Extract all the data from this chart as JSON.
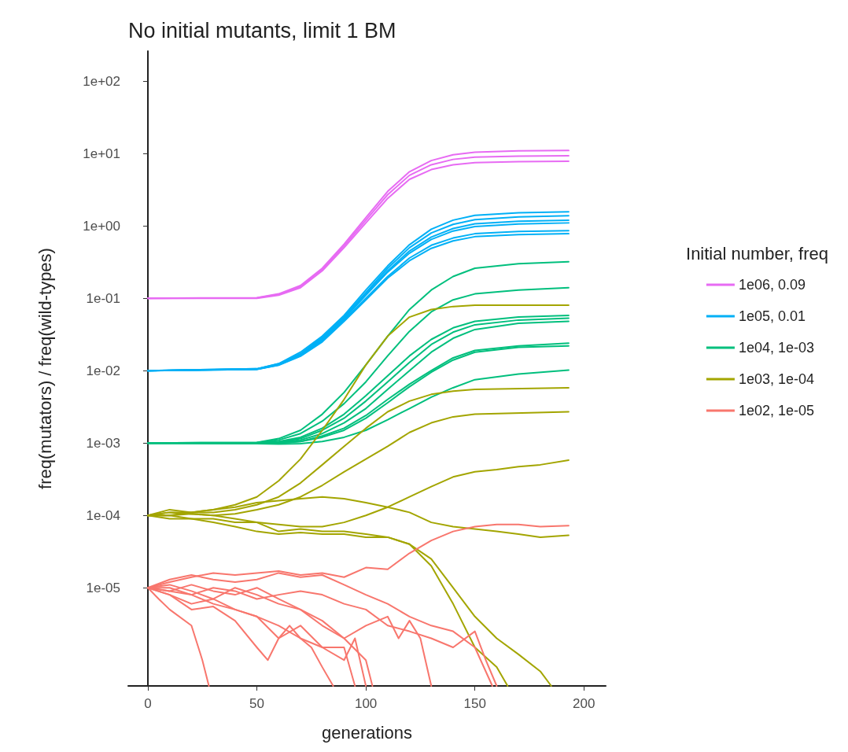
{
  "chart_data": {
    "type": "line",
    "title": "No initial mutants, limit 1 BM",
    "xlabel": "generations",
    "ylabel": "freq(mutators) / freq(wild-types)",
    "legend_title": "Initial number, freq",
    "legend": "right",
    "grid": false,
    "marker": "none",
    "line_style": "solid",
    "log": "y",
    "xlim": [
      -9,
      210
    ],
    "xticks": [
      0,
      50,
      100,
      150,
      200
    ],
    "ylim": [
      4.4e-07,
      260
    ],
    "yticks": [
      {
        "value": 1e-05,
        "label": "1e-05"
      },
      {
        "value": 0.0001,
        "label": "1e-04"
      },
      {
        "value": 0.001,
        "label": "1e-03"
      },
      {
        "value": 0.01,
        "label": "1e-02"
      },
      {
        "value": 0.1,
        "label": "1e-01"
      },
      {
        "value": 1,
        "label": "1e+00"
      },
      {
        "value": 10,
        "label": "1e+01"
      },
      {
        "value": 100,
        "label": "1e+02"
      }
    ],
    "series": [
      {
        "name": "1e06, 0.09",
        "color": "#e76bf3",
        "x": [
          0,
          50,
          60,
          70,
          80,
          90,
          100,
          110,
          120,
          130,
          140,
          150,
          170,
          193
        ],
        "values": [
          0.1,
          0.102,
          0.115,
          0.15,
          0.26,
          0.56,
          1.3,
          3,
          5.6,
          8,
          9.6,
          10.4,
          10.9,
          11
        ]
      },
      {
        "color": "#e76bf3",
        "x": [
          0,
          50,
          60,
          70,
          80,
          90,
          100,
          110,
          120,
          130,
          140,
          150,
          170,
          193
        ],
        "values": [
          0.1,
          0.101,
          0.113,
          0.145,
          0.25,
          0.53,
          1.2,
          2.7,
          5,
          7,
          8.3,
          8.9,
          9.2,
          9.3
        ]
      },
      {
        "color": "#e76bf3",
        "x": [
          0,
          50,
          60,
          70,
          80,
          90,
          100,
          110,
          120,
          130,
          140,
          150,
          170,
          193
        ],
        "values": [
          0.1,
          0.1,
          0.11,
          0.14,
          0.24,
          0.5,
          1.1,
          2.4,
          4.4,
          6,
          7,
          7.5,
          7.7,
          7.8
        ]
      },
      {
        "name": "1e05, 0.01",
        "color": "#00b0f6",
        "x": [
          0,
          50,
          60,
          70,
          80,
          90,
          100,
          110,
          120,
          130,
          140,
          150,
          170,
          193
        ],
        "values": [
          0.01,
          0.0106,
          0.0125,
          0.018,
          0.03,
          0.058,
          0.13,
          0.28,
          0.55,
          0.9,
          1.2,
          1.4,
          1.52,
          1.57
        ]
      },
      {
        "color": "#00b0f6",
        "x": [
          0,
          50,
          60,
          70,
          80,
          90,
          100,
          110,
          120,
          130,
          140,
          150,
          170,
          193
        ],
        "values": [
          0.01,
          0.0106,
          0.0124,
          0.017,
          0.029,
          0.056,
          0.12,
          0.26,
          0.5,
          0.8,
          1.05,
          1.22,
          1.33,
          1.38
        ]
      },
      {
        "color": "#00b0f6",
        "x": [
          0,
          50,
          60,
          70,
          80,
          90,
          100,
          110,
          120,
          130,
          140,
          150,
          170,
          193
        ],
        "values": [
          0.01,
          0.0105,
          0.0122,
          0.017,
          0.028,
          0.054,
          0.115,
          0.24,
          0.45,
          0.7,
          0.92,
          1.07,
          1.16,
          1.2
        ]
      },
      {
        "color": "#00b0f6",
        "x": [
          0,
          50,
          60,
          70,
          80,
          90,
          100,
          110,
          120,
          130,
          140,
          150,
          170,
          193
        ],
        "values": [
          0.01,
          0.0105,
          0.0121,
          0.0165,
          0.027,
          0.052,
          0.11,
          0.23,
          0.42,
          0.65,
          0.85,
          0.98,
          1.06,
          1.1
        ]
      },
      {
        "color": "#00b0f6",
        "x": [
          0,
          50,
          60,
          70,
          80,
          90,
          100,
          110,
          120,
          130,
          140,
          150,
          170,
          193
        ],
        "values": [
          0.01,
          0.0104,
          0.012,
          0.016,
          0.026,
          0.05,
          0.1,
          0.2,
          0.36,
          0.54,
          0.68,
          0.78,
          0.84,
          0.86
        ]
      },
      {
        "color": "#00b0f6",
        "x": [
          0,
          50,
          60,
          70,
          80,
          90,
          100,
          110,
          120,
          130,
          140,
          150,
          170,
          193
        ],
        "values": [
          0.01,
          0.0104,
          0.0119,
          0.0158,
          0.025,
          0.048,
          0.095,
          0.19,
          0.33,
          0.49,
          0.62,
          0.71,
          0.76,
          0.78
        ]
      },
      {
        "name": "1e04, 1e-03",
        "color": "#00bf7d",
        "x": [
          0,
          50,
          60,
          70,
          80,
          90,
          100,
          110,
          120,
          130,
          140,
          150,
          170,
          193
        ],
        "values": [
          0.001,
          0.00102,
          0.00115,
          0.0015,
          0.0025,
          0.005,
          0.012,
          0.03,
          0.07,
          0.13,
          0.2,
          0.26,
          0.3,
          0.32
        ]
      },
      {
        "color": "#00bf7d",
        "x": [
          0,
          50,
          60,
          70,
          80,
          90,
          100,
          110,
          120,
          130,
          140,
          150,
          170,
          193
        ],
        "values": [
          0.001,
          0.00102,
          0.0011,
          0.00135,
          0.002,
          0.0035,
          0.007,
          0.016,
          0.035,
          0.065,
          0.095,
          0.115,
          0.13,
          0.14
        ]
      },
      {
        "color": "#00bf7d",
        "x": [
          0,
          50,
          60,
          70,
          80,
          90,
          100,
          110,
          120,
          130,
          140,
          150,
          170,
          193
        ],
        "values": [
          0.001,
          0.001,
          0.00105,
          0.0012,
          0.0016,
          0.0025,
          0.0045,
          0.0085,
          0.016,
          0.027,
          0.039,
          0.048,
          0.055,
          0.058
        ]
      },
      {
        "color": "#00bf7d",
        "x": [
          0,
          50,
          60,
          70,
          80,
          90,
          100,
          110,
          120,
          130,
          140,
          150,
          170,
          193
        ],
        "values": [
          0.001,
          0.001,
          0.00103,
          0.00115,
          0.0015,
          0.0022,
          0.0038,
          0.007,
          0.013,
          0.023,
          0.034,
          0.043,
          0.05,
          0.053
        ]
      },
      {
        "color": "#00bf7d",
        "x": [
          0,
          50,
          60,
          70,
          80,
          90,
          100,
          110,
          120,
          130,
          140,
          150,
          170,
          193
        ],
        "values": [
          0.001,
          0.001,
          0.00102,
          0.0011,
          0.00135,
          0.0019,
          0.003,
          0.0055,
          0.01,
          0.018,
          0.028,
          0.037,
          0.045,
          0.048
        ]
      },
      {
        "color": "#00bf7d",
        "x": [
          0,
          50,
          60,
          70,
          80,
          90,
          100,
          110,
          120,
          130,
          140,
          150,
          170,
          193
        ],
        "values": [
          0.001,
          0.001,
          0.001,
          0.00105,
          0.00125,
          0.0016,
          0.0024,
          0.004,
          0.0065,
          0.01,
          0.015,
          0.019,
          0.022,
          0.024
        ]
      },
      {
        "color": "#00bf7d",
        "x": [
          0,
          50,
          60,
          70,
          80,
          90,
          100,
          110,
          120,
          130,
          140,
          150,
          170,
          193
        ],
        "values": [
          0.001,
          0.00098,
          0.001,
          0.00105,
          0.0012,
          0.0015,
          0.0022,
          0.0036,
          0.006,
          0.0095,
          0.014,
          0.018,
          0.021,
          0.022
        ]
      },
      {
        "color": "#00bf7d",
        "x": [
          0,
          50,
          60,
          70,
          80,
          90,
          100,
          110,
          120,
          130,
          140,
          150,
          170,
          193
        ],
        "values": [
          0.001,
          0.00098,
          0.00097,
          0.00098,
          0.00105,
          0.0012,
          0.0015,
          0.0021,
          0.003,
          0.0043,
          0.0058,
          0.0075,
          0.009,
          0.0102
        ]
      },
      {
        "name": "1e03, 1e-04",
        "color": "#a3a500",
        "x": [
          0,
          10,
          20,
          30,
          40,
          50,
          60,
          70,
          80,
          90,
          100,
          110,
          120,
          130,
          140,
          150,
          193
        ],
        "values": [
          0.0001,
          0.00011,
          0.00011,
          0.00012,
          0.00014,
          0.00018,
          0.0003,
          0.0006,
          0.0015,
          0.004,
          0.012,
          0.03,
          0.055,
          0.07,
          0.077,
          0.08,
          0.08
        ]
      },
      {
        "color": "#a3a500",
        "x": [
          0,
          10,
          20,
          30,
          40,
          50,
          60,
          70,
          80,
          90,
          100,
          110,
          120,
          130,
          140,
          150,
          193
        ],
        "values": [
          0.0001,
          0.0001,
          0.00011,
          0.00011,
          0.00012,
          0.00014,
          0.00018,
          0.00028,
          0.0005,
          0.0009,
          0.0016,
          0.0027,
          0.0038,
          0.0047,
          0.0052,
          0.0055,
          0.0058
        ]
      },
      {
        "color": "#a3a500",
        "x": [
          0,
          10,
          20,
          30,
          40,
          50,
          60,
          70,
          80,
          90,
          100,
          110,
          120,
          130,
          140,
          150,
          193
        ],
        "values": [
          0.0001,
          0.0001,
          0.000105,
          0.0001,
          0.000105,
          0.00012,
          0.00014,
          0.00018,
          0.00026,
          0.0004,
          0.0006,
          0.0009,
          0.0014,
          0.0019,
          0.0023,
          0.0025,
          0.0027
        ]
      },
      {
        "color": "#a3a500",
        "x": [
          0,
          10,
          20,
          30,
          40,
          50,
          60,
          70,
          80,
          90,
          100,
          110,
          120,
          130,
          140,
          150,
          160,
          170,
          180,
          193
        ],
        "values": [
          0.0001,
          0.0001,
          9e-05,
          9e-05,
          8e-05,
          8e-05,
          7.5e-05,
          7e-05,
          7e-05,
          8e-05,
          0.0001,
          0.00013,
          0.00018,
          0.00025,
          0.00034,
          0.0004,
          0.00043,
          0.00047,
          0.0005,
          0.00058
        ]
      },
      {
        "color": "#a3a500",
        "x": [
          0,
          10,
          20,
          30,
          40,
          50,
          60,
          70,
          80,
          90,
          100,
          110,
          120,
          130,
          140,
          150,
          160,
          170,
          180,
          193
        ],
        "values": [
          0.0001,
          0.00012,
          0.00011,
          0.00012,
          0.00013,
          0.00015,
          0.00016,
          0.00017,
          0.00018,
          0.00017,
          0.00015,
          0.00013,
          0.00011,
          8e-05,
          7e-05,
          6.5e-05,
          6e-05,
          5.5e-05,
          5e-05,
          5.3e-05
        ]
      },
      {
        "color": "#a3a500",
        "x": [
          0,
          10,
          20,
          30,
          40,
          50,
          60,
          70,
          80,
          90,
          100,
          110,
          120,
          130,
          140,
          150,
          160,
          165
        ],
        "values": [
          0.0001,
          9e-05,
          9e-05,
          8e-05,
          7e-05,
          6e-05,
          5.5e-05,
          5.8e-05,
          5.5e-05,
          5.5e-05,
          5e-05,
          5e-05,
          4e-05,
          2e-05,
          6e-06,
          1.5e-06,
          8e-07,
          4.4e-07
        ]
      },
      {
        "color": "#a3a500",
        "x": [
          0,
          10,
          20,
          30,
          40,
          50,
          60,
          70,
          80,
          90,
          100,
          110,
          120,
          130,
          140,
          150,
          160,
          170,
          180,
          185
        ],
        "values": [
          0.0001,
          0.00011,
          0.000105,
          0.0001,
          9e-05,
          8e-05,
          6e-05,
          6.5e-05,
          6e-05,
          6e-05,
          5.5e-05,
          5e-05,
          4e-05,
          2.5e-05,
          1e-05,
          4e-06,
          2e-06,
          1.2e-06,
          7e-07,
          4.4e-07
        ]
      },
      {
        "name": "1e02, 1e-05",
        "color": "#f8766d",
        "x": [
          0,
          10,
          20,
          30,
          40,
          50,
          60,
          70,
          80,
          90,
          100,
          110,
          120,
          130,
          140,
          150,
          160,
          170,
          180,
          193
        ],
        "values": [
          1e-05,
          1.2e-05,
          1.4e-05,
          1.6e-05,
          1.5e-05,
          1.6e-05,
          1.7e-05,
          1.5e-05,
          1.6e-05,
          1.4e-05,
          1.9e-05,
          1.8e-05,
          3e-05,
          4.5e-05,
          6e-05,
          7e-05,
          7.5e-05,
          7.5e-05,
          7e-05,
          7.2e-05
        ]
      },
      {
        "color": "#f8766d",
        "x": [
          0,
          10,
          20,
          30,
          40,
          50,
          60,
          70,
          80,
          90,
          100,
          110,
          120,
          130,
          140,
          150,
          158
        ],
        "values": [
          1e-05,
          1.3e-05,
          1.5e-05,
          1.3e-05,
          1.2e-05,
          1.3e-05,
          1.6e-05,
          1.4e-05,
          1.5e-05,
          1.1e-05,
          8e-06,
          6e-06,
          4e-06,
          3e-06,
          2.5e-06,
          1.5e-06,
          4.4e-07
        ]
      },
      {
        "color": "#f8766d",
        "x": [
          0,
          5,
          10,
          20,
          25,
          28
        ],
        "values": [
          1e-05,
          7e-06,
          5e-06,
          3e-06,
          1e-06,
          4.4e-07
        ]
      },
      {
        "color": "#f8766d",
        "x": [
          0,
          10,
          20,
          30,
          40,
          50,
          55,
          60,
          70,
          80,
          90,
          95
        ],
        "values": [
          1e-05,
          8e-06,
          5e-06,
          5.5e-06,
          3.5e-06,
          1.5e-06,
          1e-06,
          2e-06,
          3e-06,
          1.5e-06,
          1.5e-06,
          4.4e-07
        ]
      },
      {
        "color": "#f8766d",
        "x": [
          0,
          10,
          20,
          30,
          40,
          50,
          60,
          70,
          80,
          90,
          100,
          103
        ],
        "values": [
          1e-05,
          9e-06,
          1.1e-05,
          9e-06,
          8e-06,
          1e-05,
          7e-06,
          5e-06,
          3e-06,
          2e-06,
          1e-06,
          4.4e-07
        ]
      },
      {
        "color": "#f8766d",
        "x": [
          0,
          10,
          20,
          30,
          40,
          50,
          60,
          70,
          80,
          90,
          100,
          110,
          115,
          120,
          125,
          130
        ],
        "values": [
          1e-05,
          1.1e-05,
          9e-06,
          7e-06,
          1e-05,
          8e-06,
          6e-06,
          5e-06,
          3.5e-06,
          2e-06,
          3e-06,
          4e-06,
          2e-06,
          3.5e-06,
          2e-06,
          4.4e-07
        ]
      },
      {
        "color": "#f8766d",
        "x": [
          0,
          10,
          20,
          30,
          40,
          50,
          60,
          70,
          80,
          90,
          100,
          110,
          120,
          130,
          140,
          150,
          155,
          160
        ],
        "values": [
          1e-05,
          9e-06,
          8e-06,
          1e-05,
          9e-06,
          7e-06,
          8e-06,
          9e-06,
          8e-06,
          6e-06,
          5e-06,
          3e-06,
          2.5e-06,
          2e-06,
          1.5e-06,
          2.5e-06,
          1e-06,
          4.4e-07
        ]
      },
      {
        "color": "#f8766d",
        "x": [
          0,
          10,
          20,
          30,
          40,
          50,
          60,
          70,
          75,
          80,
          85
        ],
        "values": [
          1e-05,
          8e-06,
          6e-06,
          7e-06,
          5e-06,
          4e-06,
          3e-06,
          2e-06,
          1.5e-06,
          8e-07,
          4.4e-07
        ]
      },
      {
        "color": "#f8766d",
        "x": [
          0,
          10,
          20,
          30,
          40,
          50,
          60,
          65,
          70,
          80,
          90,
          95,
          100
        ],
        "values": [
          1e-05,
          1e-05,
          8e-06,
          6e-06,
          5e-06,
          4e-06,
          2e-06,
          3e-06,
          2e-06,
          1.5e-06,
          1e-06,
          2e-06,
          4.4e-07
        ]
      }
    ]
  }
}
